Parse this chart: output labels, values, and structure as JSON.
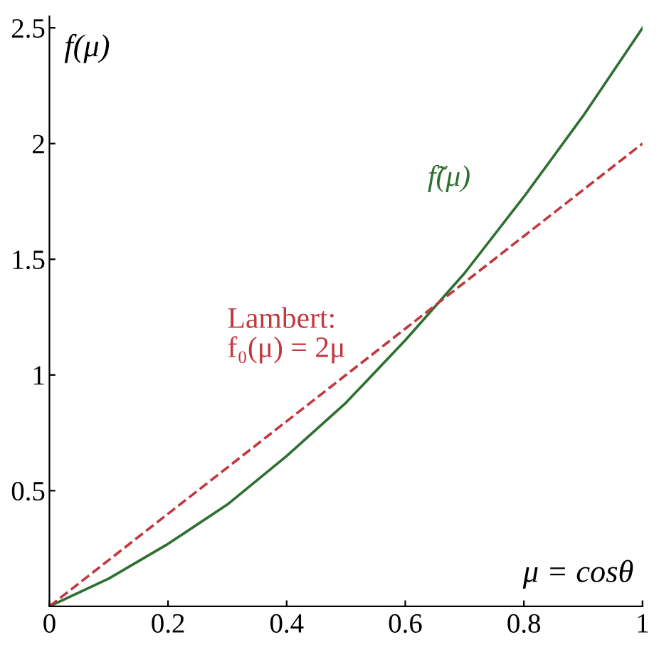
{
  "chart_data": {
    "type": "line",
    "xlabel": "μ = cosθ",
    "ylabel": "f(μ)",
    "x": [
      0,
      0.1,
      0.2,
      0.3,
      0.4,
      0.5,
      0.6,
      0.7,
      0.8,
      0.9,
      1
    ],
    "xlim": [
      0,
      1
    ],
    "ylim": [
      0,
      2.55
    ],
    "xticks": [
      0,
      0.2,
      0.4,
      0.6,
      0.8,
      1
    ],
    "yticks": [
      0.5,
      1,
      1.5,
      2,
      2.5
    ],
    "grid": false,
    "legend": false,
    "marker": "none",
    "series": [
      {
        "name": "f̃(μ)",
        "color": "#2e7031",
        "line_style": "solid",
        "values": [
          0,
          0.12,
          0.27,
          0.44,
          0.65,
          0.88,
          1.15,
          1.44,
          1.77,
          2.12,
          2.5
        ]
      },
      {
        "name": "Lambert:\nf₀(μ) = 2μ",
        "color": "#c0393f",
        "line_style": "dashed",
        "values": [
          0,
          0.2,
          0.4,
          0.6,
          0.8,
          1.0,
          1.2,
          1.4,
          1.6,
          1.8,
          2.0
        ]
      }
    ]
  }
}
